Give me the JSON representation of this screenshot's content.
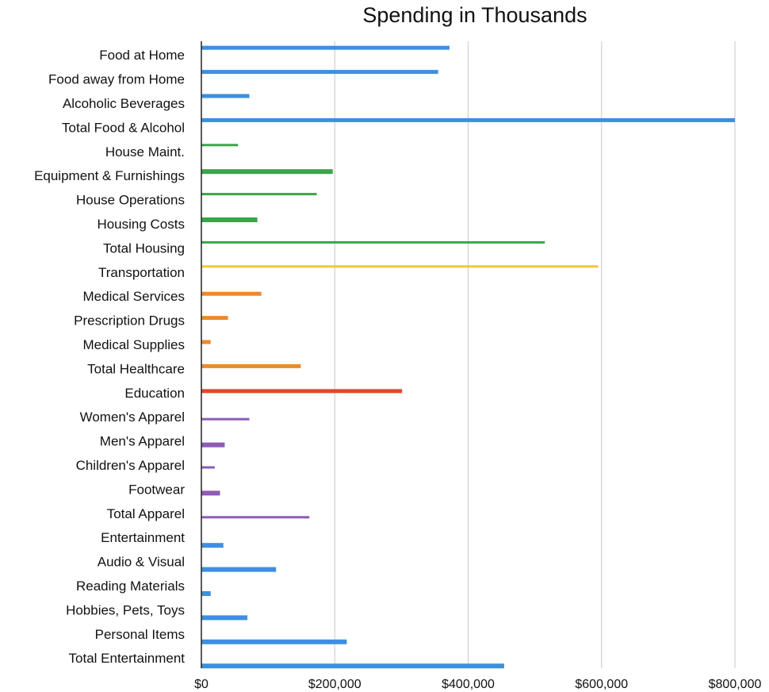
{
  "chart_data": {
    "type": "bar",
    "orientation": "horizontal",
    "title": "Spending in Thousands",
    "xlabel": "",
    "ylabel": "",
    "xlim": [
      0,
      800000
    ],
    "grid": true,
    "legend": "none",
    "x_ticks": [
      "$0",
      "$200,000",
      "$400,000",
      "$600,000",
      "$800,000"
    ],
    "x_tick_values": [
      0,
      200000,
      400000,
      600000,
      800000
    ],
    "categories": [
      "Food at Home",
      "Food away from Home",
      "Alcoholic Beverages",
      "Total Food & Alcohol",
      "House Maint.",
      "Equipment & Furnishings",
      "House Operations",
      "Housing Costs",
      "Total Housing",
      "Transportation",
      "Medical Services",
      "Prescription Drugs",
      "Medical Supplies",
      "Total Healthcare",
      "Education",
      "Women's Apparel",
      "Men's Apparel",
      "Children's Apparel",
      "Footwear",
      "Total Apparel",
      "Entertainment",
      "Audio & Visual",
      "Reading Materials",
      "Hobbies, Pets, Toys",
      "Personal Items",
      "Total Entertainment"
    ],
    "values": [
      372000,
      355000,
      72000,
      800000,
      55000,
      197000,
      173000,
      84000,
      515000,
      595000,
      90000,
      40000,
      14000,
      149000,
      301000,
      72000,
      35000,
      20000,
      28000,
      162000,
      33000,
      112000,
      14000,
      69000,
      218000,
      454000
    ],
    "colors": [
      "#3d8fe0",
      "#3d8fe0",
      "#3d8fe0",
      "#3d8fe0",
      "#3aa54a",
      "#3aa54a",
      "#3aa54a",
      "#3aa54a",
      "#3aa54a",
      "#f0c93a",
      "#ec8a2e",
      "#ec8a2e",
      "#ec8a2e",
      "#ec8a2e",
      "#e2462d",
      "#8e5bb5",
      "#8e5bb5",
      "#8e5bb5",
      "#8e5bb5",
      "#8e5bb5",
      "#3d8fe0",
      "#3d8fe0",
      "#3d8fe0",
      "#3d8fe0",
      "#3d8fe0",
      "#3d8fe0"
    ],
    "bar_thickness": [
      5,
      5,
      5,
      5,
      3,
      6,
      3,
      6,
      3,
      3,
      5,
      5,
      5,
      5,
      5,
      3,
      6,
      3,
      6,
      3,
      6,
      6,
      6,
      6,
      6,
      6
    ],
    "bar_offset": [
      -9,
      -9,
      -9,
      -9,
      -8,
      -5,
      -7,
      -5,
      -7,
      -7,
      -3,
      -3,
      -3,
      -3,
      -2,
      3,
      5,
      3,
      5,
      5,
      10,
      10,
      10,
      10,
      10,
      10
    ]
  }
}
